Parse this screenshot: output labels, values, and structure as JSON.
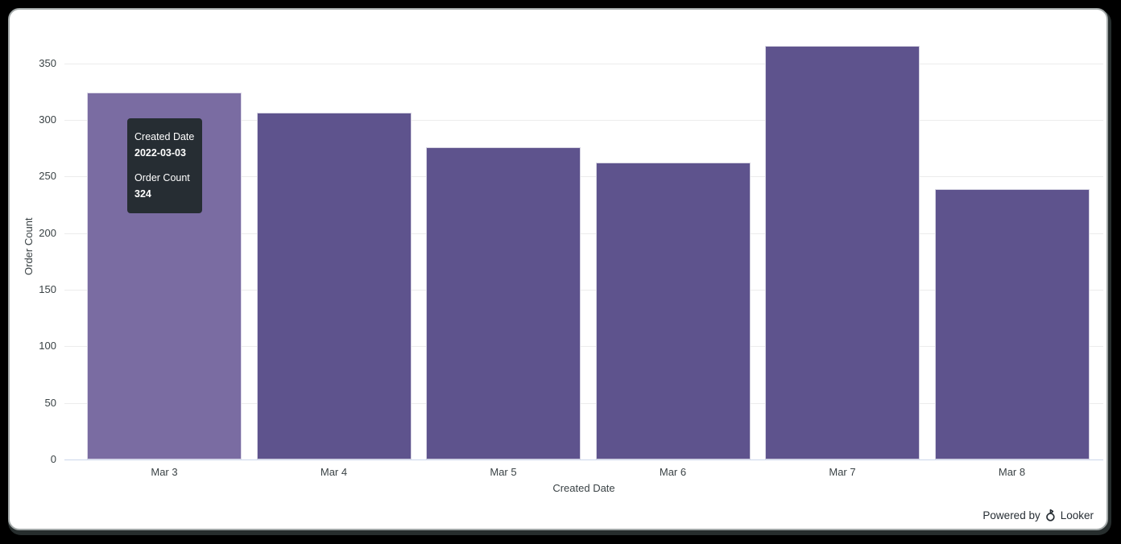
{
  "chart_data": {
    "type": "bar",
    "categories": [
      "Mar 3",
      "Mar 4",
      "Mar 5",
      "Mar 6",
      "Mar 7",
      "Mar 8"
    ],
    "values": [
      324,
      306,
      276,
      262,
      365,
      239
    ],
    "title": "",
    "xlabel": "Created Date",
    "ylabel": "Order Count",
    "ylim": [
      0,
      376
    ],
    "yticks": [
      0,
      50,
      100,
      150,
      200,
      250,
      300,
      350
    ],
    "grid": true,
    "legend": "none",
    "hovered_index": 0,
    "colors": {
      "bar": "#5e538d",
      "bar_hover": "#7a6ca2",
      "gridline": "#ececec",
      "axis_line": "#ccd6eb",
      "axis_label": "#3a4245"
    }
  },
  "tooltip": {
    "dimension_label": "Created Date",
    "dimension_value": "2022-03-03",
    "measure_label": "Order Count",
    "measure_value": "324",
    "bg_color": "#262d33"
  },
  "footer": {
    "powered_by_label": "Powered by",
    "brand_label": "Looker"
  }
}
